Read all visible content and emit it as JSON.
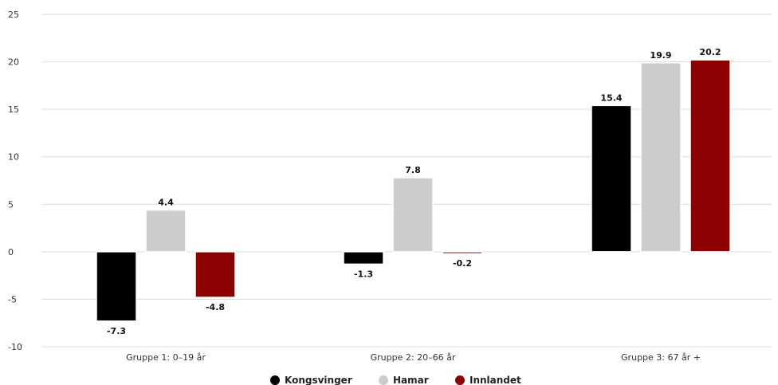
{
  "chart_data": {
    "type": "bar",
    "title": "",
    "xlabel": "",
    "ylabel": "",
    "ylim": [
      -10,
      25
    ],
    "yticks": [
      25,
      20,
      15,
      10,
      5,
      0,
      -5,
      -10
    ],
    "grid": true,
    "legend_position": "bottom",
    "data_labels": true,
    "categories": [
      "Gruppe 1: 0–19 år",
      "Gruppe 2: 20–66 år",
      "Gruppe 3: 67 år +"
    ],
    "series": [
      {
        "name": "Kongsvinger",
        "color": "#000000",
        "values": [
          -7.3,
          -1.3,
          15.4
        ]
      },
      {
        "name": "Hamar",
        "color": "#cccccc",
        "values": [
          4.4,
          7.8,
          19.9
        ]
      },
      {
        "name": "Innlandet",
        "color": "#8b0000",
        "values": [
          -4.8,
          -0.2,
          20.2
        ]
      }
    ]
  }
}
